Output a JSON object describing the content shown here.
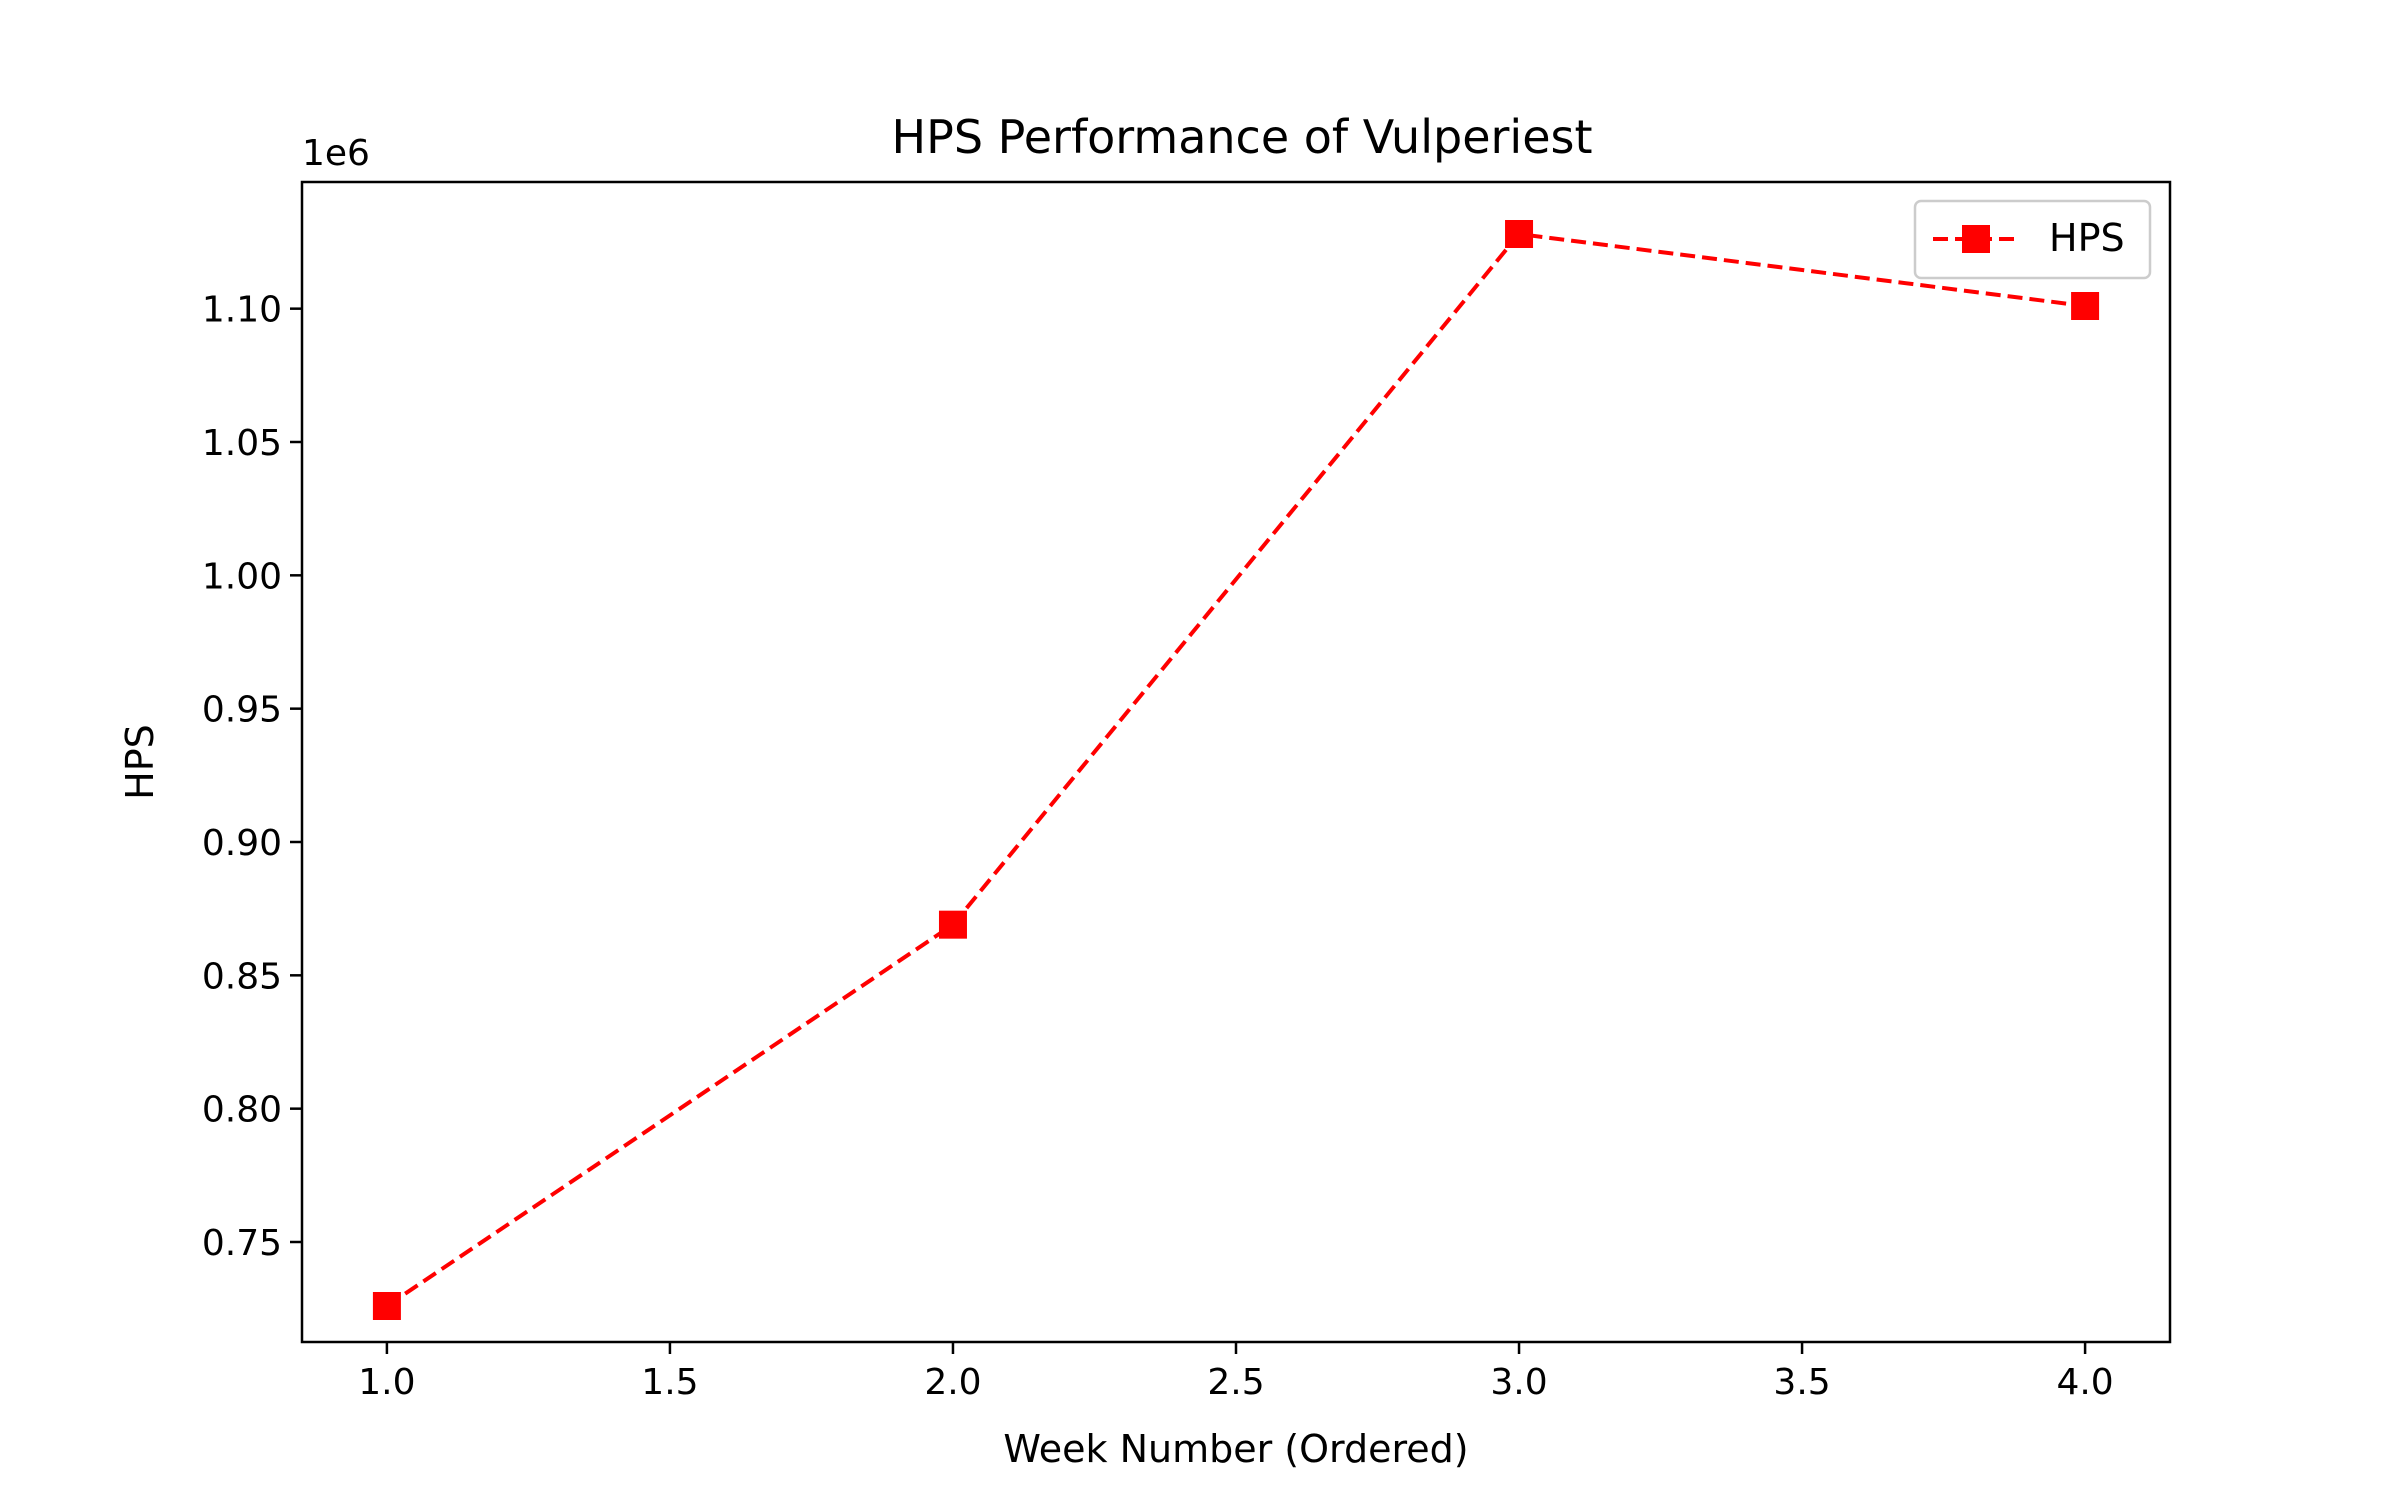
{
  "chart_data": {
    "type": "line",
    "title": "HPS Performance of Vulperiest",
    "xlabel": "Week Number (Ordered)",
    "ylabel": "HPS",
    "y_offset_label": "1e6",
    "x": [
      1.0,
      2.0,
      3.0,
      4.0
    ],
    "series": [
      {
        "name": "HPS",
        "values": [
          726000,
          869000,
          1128000,
          1101000
        ],
        "color": "#ff0000",
        "line_style": "dashed",
        "marker": "square"
      }
    ],
    "xlim": [
      0.85,
      4.15
    ],
    "ylim": [
      0.7125,
      1.1475
    ],
    "x_ticks": [
      1.0,
      1.5,
      2.0,
      2.5,
      3.0,
      3.5,
      4.0
    ],
    "x_tick_labels": [
      "1.0",
      "1.5",
      "2.0",
      "2.5",
      "3.0",
      "3.5",
      "4.0"
    ],
    "y_ticks": [
      0.75,
      0.8,
      0.85,
      0.9,
      0.95,
      1.0,
      1.05,
      1.1
    ],
    "y_tick_labels": [
      "0.75",
      "0.80",
      "0.85",
      "0.90",
      "0.95",
      "1.00",
      "1.05",
      "1.10"
    ],
    "y_scale": 1000000,
    "grid": false,
    "legend_position": "top-right"
  }
}
